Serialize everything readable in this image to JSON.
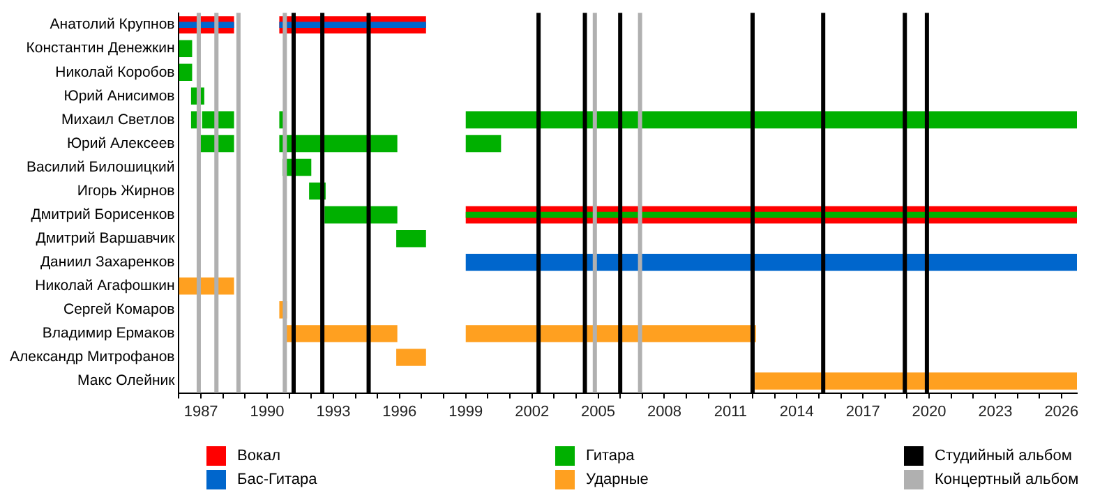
{
  "chart_data": {
    "type": "bar",
    "orientation": "horizontal",
    "legend": "bottom",
    "grid": false,
    "categories": [
      "Анатолий Крупнов",
      "Константин Денежкин",
      "Николай Коробов",
      "Юрий Анисимов",
      "Михаил Светлов",
      "Юрий Алексеев",
      "Василий Билошицкий",
      "Игорь Жирнов",
      "Дмитрий Борисенков",
      "Дмитрий Варшавчик",
      "Даниил Захаренков",
      "Николай Агафошкин",
      "Сергей Комаров",
      "Владимир Ермаков",
      "Александр Митрофанов",
      "Макс Олейник"
    ],
    "xlim": [
      1986,
      2026.7
    ],
    "xticks": [
      {
        "value": 1986,
        "label": null
      },
      1987,
      {
        "value": 1988,
        "label": null
      },
      {
        "value": 1989,
        "label": null
      },
      1990,
      {
        "value": 1991,
        "label": null
      },
      {
        "value": 1992,
        "label": null
      },
      1993,
      {
        "value": 1994,
        "label": null
      },
      {
        "value": 1995,
        "label": null
      },
      1996,
      {
        "value": 1997,
        "label": null
      },
      {
        "value": 1998,
        "label": null
      },
      1999,
      {
        "value": 2000,
        "label": null
      },
      {
        "value": 2001,
        "label": null
      },
      2002,
      {
        "value": 2003,
        "label": null
      },
      {
        "value": 2004,
        "label": null
      },
      2005,
      {
        "value": 2006,
        "label": null
      },
      {
        "value": 2007,
        "label": null
      },
      2008,
      {
        "value": 2009,
        "label": null
      },
      {
        "value": 2010,
        "label": null
      },
      2011,
      {
        "value": 2012,
        "label": null
      },
      {
        "value": 2013,
        "label": null
      },
      2014,
      {
        "value": 2015,
        "label": null
      },
      {
        "value": 2016,
        "label": null
      },
      2017,
      {
        "value": 2018,
        "label": null
      },
      {
        "value": 2019,
        "label": null
      },
      2020,
      {
        "value": 2021,
        "label": null
      },
      {
        "value": 2022,
        "label": null
      },
      2023,
      {
        "value": 2024,
        "label": null
      },
      {
        "value": 2025,
        "label": null
      },
      2026
    ],
    "series": [
      {
        "name": "Вокал",
        "color": "#ff0000",
        "base": [
          1986,
          null,
          null,
          null,
          null,
          null,
          null,
          null,
          1999,
          null,
          null,
          null,
          null,
          null,
          null,
          null
        ],
        "values": [
          2.5,
          null,
          null,
          null,
          null,
          null,
          null,
          null,
          27.7,
          null,
          null,
          null,
          null,
          null,
          null,
          null
        ]
      },
      {
        "color": "#ff0000",
        "base": [
          1990.55,
          null,
          null,
          null,
          null,
          null,
          null,
          null,
          null,
          null,
          null,
          null,
          null,
          null,
          null,
          null
        ],
        "values": [
          6.65,
          null,
          null,
          null,
          null,
          null,
          null,
          null,
          null,
          null,
          null,
          null,
          null,
          null,
          null,
          null
        ]
      },
      {
        "name": "Бас-Гитара",
        "color": "#0066cc",
        "base": [
          null,
          null,
          null,
          null,
          null,
          null,
          null,
          null,
          null,
          null,
          1999,
          null,
          null,
          null,
          null,
          null
        ],
        "values": [
          null,
          null,
          null,
          null,
          null,
          null,
          null,
          null,
          null,
          null,
          27.7,
          null,
          null,
          null,
          null,
          null
        ]
      },
      {
        "color": "#0066cc",
        "base": [
          1986,
          null,
          null,
          null,
          null,
          null,
          null,
          null,
          null,
          null,
          null,
          null,
          null,
          null,
          null,
          null
        ],
        "values": [
          2.5,
          null,
          null,
          null,
          null,
          null,
          null,
          null,
          null,
          null,
          null,
          null,
          null,
          null,
          null,
          null
        ]
      },
      {
        "color": "#0066cc",
        "base": [
          1990.55,
          null,
          null,
          null,
          null,
          null,
          null,
          null,
          null,
          null,
          null,
          null,
          null,
          null,
          null,
          null
        ],
        "values": [
          6.65,
          null,
          null,
          null,
          null,
          null,
          null,
          null,
          null,
          null,
          null,
          null,
          null,
          null,
          null,
          null
        ]
      },
      {
        "name": "Гитара",
        "color": "#00b000",
        "base": [
          null,
          1986,
          1986,
          1986.55,
          1986.55,
          1986.85,
          1990.7,
          1991.9,
          1992.6,
          1995.85,
          null,
          null,
          null,
          null,
          null,
          null
        ],
        "values": [
          null,
          0.6,
          0.6,
          0.6,
          0.4,
          1.65,
          1.3,
          0.75,
          3.3,
          1.35,
          null,
          null,
          null,
          null,
          null,
          null
        ]
      },
      {
        "color": "#00b000",
        "base": [
          null,
          null,
          null,
          null,
          1987.05,
          1990.55,
          null,
          null,
          null,
          null,
          null,
          null,
          null,
          null,
          null,
          null
        ],
        "values": [
          null,
          null,
          null,
          null,
          1.45,
          5.35,
          null,
          null,
          null,
          null,
          null,
          null,
          null,
          null,
          null,
          null
        ]
      },
      {
        "color": "#00b000",
        "base": [
          null,
          null,
          null,
          null,
          1990.55,
          1999,
          null,
          null,
          null,
          null,
          null,
          null,
          null,
          null,
          null,
          null
        ],
        "values": [
          null,
          null,
          null,
          null,
          0.2,
          1.6,
          null,
          null,
          null,
          null,
          null,
          null,
          null,
          null,
          null,
          null
        ]
      },
      {
        "color": "#00b000",
        "base": [
          null,
          null,
          null,
          null,
          1999,
          null,
          null,
          null,
          null,
          null,
          null,
          null,
          null,
          null,
          null,
          null
        ],
        "values": [
          null,
          null,
          null,
          null,
          27.7,
          null,
          null,
          null,
          null,
          null,
          null,
          null,
          null,
          null,
          null,
          null
        ]
      },
      {
        "color": "#00b000",
        "base": [
          null,
          null,
          null,
          null,
          null,
          null,
          null,
          null,
          1999,
          null,
          null,
          null,
          null,
          null,
          null,
          null
        ],
        "values": [
          null,
          null,
          null,
          null,
          null,
          null,
          null,
          null,
          27.7,
          null,
          null,
          null,
          null,
          null,
          null,
          null
        ]
      },
      {
        "name": "Ударные",
        "color": "#ffa020",
        "base": [
          null,
          null,
          null,
          null,
          null,
          null,
          null,
          null,
          null,
          null,
          null,
          1986,
          1990.55,
          1990.8,
          1995.85,
          2012.1
        ],
        "values": [
          null,
          null,
          null,
          null,
          null,
          null,
          null,
          null,
          null,
          null,
          null,
          2.5,
          0.35,
          5.1,
          1.35,
          14.6
        ]
      },
      {
        "color": "#ffa020",
        "base": [
          null,
          null,
          null,
          null,
          null,
          null,
          null,
          null,
          null,
          null,
          null,
          null,
          null,
          1999,
          null,
          null
        ],
        "values": [
          null,
          null,
          null,
          null,
          null,
          null,
          null,
          null,
          null,
          null,
          null,
          null,
          null,
          13.15,
          null,
          null
        ]
      }
    ],
    "ref_lines": [
      {
        "axis": "x",
        "value": 1991.2,
        "label": "Студийный альбом",
        "color": "#000000"
      },
      {
        "axis": "x",
        "value": 1986.9,
        "label": "Концертный альбом",
        "color": "#b0b0b0"
      },
      {
        "axis": "x",
        "value": 1987.7,
        "color": "#b0b0b0"
      },
      {
        "axis": "x",
        "value": 1988.7,
        "color": "#b0b0b0"
      },
      {
        "axis": "x",
        "value": 1990.8,
        "color": "#b0b0b0"
      },
      {
        "axis": "x",
        "value": 2004.85,
        "color": "#b0b0b0"
      },
      {
        "axis": "x",
        "value": 2006.9,
        "color": "#b0b0b0"
      },
      {
        "axis": "x",
        "value": 1992.5,
        "color": "#000000"
      },
      {
        "axis": "x",
        "value": 1994.6,
        "color": "#000000"
      },
      {
        "axis": "x",
        "value": 2002.3,
        "color": "#000000"
      },
      {
        "axis": "x",
        "value": 2004.4,
        "color": "#000000"
      },
      {
        "axis": "x",
        "value": 2006,
        "color": "#000000"
      },
      {
        "axis": "x",
        "value": 2012,
        "color": "#000000"
      },
      {
        "axis": "x",
        "value": 2015.2,
        "color": "#000000"
      },
      {
        "axis": "x",
        "value": 2018.9,
        "color": "#000000"
      },
      {
        "axis": "x",
        "value": 2019.9,
        "color": "#000000"
      }
    ]
  }
}
